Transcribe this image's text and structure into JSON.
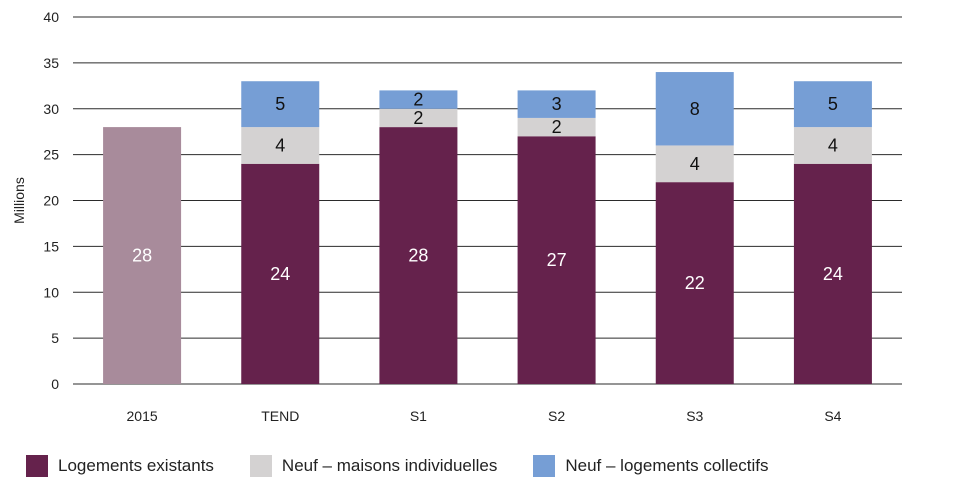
{
  "chart_data": {
    "type": "bar",
    "stacked": true,
    "categories": [
      "2015",
      "TEND",
      "S1",
      "S2",
      "S3",
      "S4"
    ],
    "series": [
      {
        "name": "Logements existants",
        "values": [
          28,
          24,
          28,
          27,
          22,
          24
        ],
        "color": "#65224c"
      },
      {
        "name": "Neuf – maisons individuelles",
        "values": [
          0,
          4,
          2,
          2,
          4,
          4
        ],
        "color": "#d4d2d2"
      },
      {
        "name": "Neuf – logements collectifs",
        "values": [
          0,
          5,
          2,
          3,
          8,
          5
        ],
        "color": "#769ed5"
      }
    ],
    "highlight": {
      "category": "2015",
      "color": "#a88b9b"
    },
    "title": "",
    "xlabel": "",
    "ylabel": "Millions",
    "ylim": [
      0,
      40
    ],
    "yticks": [
      0,
      5,
      10,
      15,
      20,
      25,
      30,
      35,
      40
    ],
    "grid": true,
    "legend_position": "bottom"
  }
}
